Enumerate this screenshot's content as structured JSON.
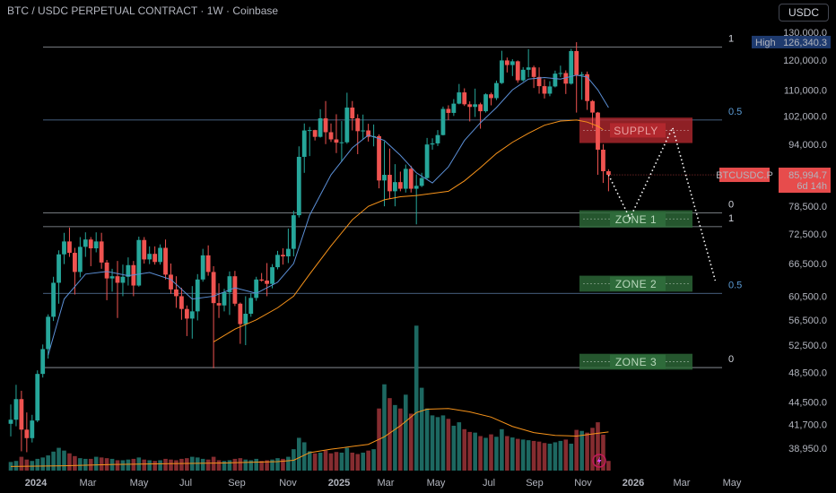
{
  "header": {
    "title": "BTC / USDC PERPETUAL CONTRACT · 1W · Coinbase",
    "currency_button": "USDC"
  },
  "chart_data": {
    "type": "candlestick",
    "symbol": "BTCUSDC.P",
    "timeframe": "1W",
    "y_scale": "log",
    "ylim": [
      36500,
      131000
    ],
    "y_ticks": [
      "130,000.0",
      "120,000.0",
      "110,000.0",
      "102,000.0",
      "94,000.0",
      "78,500.0",
      "72,500.0",
      "66,500.0",
      "60,500.0",
      "56,500.0",
      "52,500.0",
      "48,500.0",
      "44,500.0",
      "41,700.0",
      "38,950.0"
    ],
    "x_ticks": [
      "2024",
      "Mar",
      "May",
      "Jul",
      "Sep",
      "Nov",
      "2025",
      "Mar",
      "May",
      "Jul",
      "Sep",
      "Nov",
      "2026",
      "Mar",
      "May"
    ],
    "high_label": "High",
    "high_value": "126,340.3",
    "last_price": "85,994.7",
    "countdown": "6d 14h",
    "colors": {
      "up": "#26a69a",
      "down": "#ef5350",
      "ma_fast": "#5b8fd6",
      "ma_slow": "#f7931a",
      "fib_line": "#5d7ea8"
    },
    "candles": [
      [
        41800,
        44200,
        40300,
        42300
      ],
      [
        42300,
        46800,
        41500,
        44900
      ],
      [
        44900,
        46000,
        38600,
        41100
      ],
      [
        41100,
        43200,
        38500,
        40100
      ],
      [
        40100,
        42900,
        39600,
        42200
      ],
      [
        42200,
        48800,
        42000,
        48300
      ],
      [
        48300,
        52600,
        47800,
        51900
      ],
      [
        51900,
        57400,
        50500,
        57000
      ],
      [
        57000,
        64000,
        56300,
        62900
      ],
      [
        62900,
        69100,
        59200,
        68300
      ],
      [
        68300,
        72700,
        66400,
        70900
      ],
      [
        70900,
        73800,
        67800,
        68600
      ],
      [
        68600,
        69600,
        60800,
        64900
      ],
      [
        64900,
        71800,
        63900,
        69800
      ],
      [
        69800,
        72800,
        67800,
        71300
      ],
      [
        71300,
        71800,
        66000,
        69500
      ],
      [
        69500,
        72800,
        68700,
        70900
      ],
      [
        70900,
        72700,
        65500,
        66700
      ],
      [
        66700,
        67200,
        59800,
        63700
      ],
      [
        63700,
        65500,
        61300,
        64100
      ],
      [
        64100,
        67000,
        56800,
        62900
      ],
      [
        62900,
        66300,
        60500,
        64000
      ],
      [
        64000,
        67700,
        62400,
        66200
      ],
      [
        66200,
        67000,
        60500,
        62400
      ],
      [
        62400,
        71900,
        62200,
        71200
      ],
      [
        71200,
        71800,
        66500,
        67300
      ],
      [
        67300,
        69900,
        66400,
        68400
      ],
      [
        68400,
        69900,
        66300,
        66800
      ],
      [
        66800,
        70300,
        66300,
        69600
      ],
      [
        69600,
        71300,
        63500,
        64400
      ],
      [
        64400,
        66500,
        60900,
        61700
      ],
      [
        61700,
        64100,
        58500,
        60500
      ],
      [
        60500,
        62000,
        56500,
        58300
      ],
      [
        58300,
        58900,
        53900,
        56700
      ],
      [
        56700,
        62300,
        53500,
        57900
      ],
      [
        57900,
        64500,
        56400,
        63500
      ],
      [
        63500,
        69400,
        63100,
        68100
      ],
      [
        68100,
        70100,
        64200,
        64900
      ],
      [
        64900,
        66000,
        49100,
        59300
      ],
      [
        59300,
        62800,
        56800,
        58900
      ],
      [
        58900,
        61800,
        57900,
        61200
      ],
      [
        61200,
        65000,
        57300,
        64100
      ],
      [
        64100,
        65100,
        58800,
        59200
      ],
      [
        59200,
        59400,
        52700,
        55800
      ],
      [
        55800,
        60500,
        52500,
        57500
      ],
      [
        57500,
        61000,
        57000,
        60200
      ],
      [
        60200,
        64000,
        59700,
        63500
      ],
      [
        63500,
        64700,
        63100,
        63300
      ],
      [
        63300,
        66600,
        60500,
        62700
      ],
      [
        62700,
        66400,
        61900,
        65800
      ],
      [
        65800,
        69000,
        65400,
        68200
      ],
      [
        68200,
        69500,
        66300,
        67900
      ],
      [
        67900,
        73600,
        66600,
        69400
      ],
      [
        69400,
        77500,
        67900,
        76500
      ],
      [
        76500,
        93400,
        76000,
        90600
      ],
      [
        90600,
        99800,
        86500,
        97800
      ],
      [
        97800,
        98800,
        90800,
        97900
      ],
      [
        97900,
        98000,
        95000,
        96000
      ],
      [
        96000,
        104000,
        95800,
        101300
      ],
      [
        101300,
        106500,
        94000,
        97300
      ],
      [
        97300,
        99800,
        94600,
        95300
      ],
      [
        95300,
        102500,
        91600,
        94400
      ],
      [
        94400,
        100500,
        89300,
        94500
      ],
      [
        94500,
        109100,
        94100,
        104500
      ],
      [
        104500,
        106500,
        97800,
        101300
      ],
      [
        101300,
        102500,
        91300,
        97600
      ],
      [
        97600,
        102400,
        95300,
        97800
      ],
      [
        97800,
        99700,
        94700,
        96000
      ],
      [
        96000,
        99500,
        93400,
        96200
      ],
      [
        96200,
        96700,
        82700,
        84600
      ],
      [
        84600,
        94700,
        78500,
        86000
      ],
      [
        86000,
        92800,
        80200,
        82000
      ],
      [
        82000,
        88700,
        78500,
        84200
      ],
      [
        84200,
        86800,
        82000,
        82600
      ],
      [
        82600,
        88600,
        81700,
        87500
      ],
      [
        87500,
        88300,
        81700,
        82600
      ],
      [
        82600,
        86100,
        74500,
        83300
      ],
      [
        83300,
        86500,
        83000,
        85200
      ],
      [
        85200,
        95700,
        85000,
        93900
      ],
      [
        93900,
        95600,
        92500,
        94200
      ],
      [
        94200,
        97900,
        93500,
        96500
      ],
      [
        96500,
        104800,
        96400,
        104100
      ],
      [
        104100,
        105200,
        100800,
        102900
      ],
      [
        102900,
        107100,
        102000,
        105700
      ],
      [
        105700,
        111900,
        105500,
        109200
      ],
      [
        109200,
        110500,
        105000,
        105500
      ],
      [
        105500,
        106400,
        100400,
        104700
      ],
      [
        104700,
        110400,
        101700,
        105500
      ],
      [
        105500,
        106000,
        98300,
        103400
      ],
      [
        103400,
        108900,
        103000,
        108600
      ],
      [
        108600,
        109100,
        105200,
        107400
      ],
      [
        107400,
        113000,
        106800,
        112200
      ],
      [
        112200,
        123200,
        111900,
        119800
      ],
      [
        119800,
        120800,
        115700,
        118200
      ],
      [
        118200,
        120200,
        114500,
        119500
      ],
      [
        119500,
        119800,
        112300,
        113100
      ],
      [
        113100,
        117500,
        112700,
        116600
      ],
      [
        116600,
        123800,
        114100,
        117400
      ],
      [
        117400,
        118000,
        110600,
        114200
      ],
      [
        114200,
        117400,
        108800,
        111200
      ],
      [
        111200,
        113400,
        107300,
        108800
      ],
      [
        108800,
        112800,
        108000,
        111100
      ],
      [
        111100,
        116300,
        110800,
        115300
      ],
      [
        115300,
        118000,
        114200,
        115500
      ],
      [
        115500,
        116400,
        108700,
        112000
      ],
      [
        112000,
        123900,
        111700,
        123100
      ],
      [
        123100,
        126300,
        103000,
        114800
      ],
      [
        114800,
        115900,
        106900,
        115100
      ],
      [
        115100,
        116000,
        103800,
        106500
      ],
      [
        106500,
        106800,
        98500,
        103000
      ],
      [
        103000,
        103200,
        86000,
        92500
      ],
      [
        92500,
        94000,
        84000,
        86900
      ],
      [
        86900,
        87400,
        82000,
        86000
      ]
    ],
    "volume_scale": [
      0,
      1000
    ],
    "volumes": [
      25,
      28,
      40,
      32,
      28,
      34,
      38,
      44,
      55,
      66,
      58,
      50,
      42,
      36,
      34,
      34,
      40,
      38,
      36,
      34,
      30,
      30,
      32,
      34,
      38,
      32,
      30,
      28,
      30,
      34,
      32,
      30,
      34,
      36,
      40,
      38,
      34,
      32,
      40,
      30,
      28,
      30,
      34,
      36,
      32,
      30,
      34,
      28,
      30,
      32,
      36,
      34,
      40,
      62,
      95,
      82,
      56,
      50,
      52,
      58,
      50,
      54,
      52,
      66,
      52,
      48,
      52,
      58,
      62,
      180,
      250,
      210,
      190,
      180,
      220,
      165,
      420,
      240,
      180,
      160,
      155,
      160,
      150,
      130,
      140,
      120,
      112,
      110,
      100,
      95,
      105,
      98,
      120,
      100,
      96,
      92,
      90,
      88,
      86,
      84,
      80,
      78,
      82,
      86,
      90,
      78,
      118,
      115,
      110,
      124,
      140,
      104,
      28
    ],
    "ma_fast": [
      [
        7,
        51000
      ],
      [
        10,
        60000
      ],
      [
        14,
        64500
      ],
      [
        18,
        65000
      ],
      [
        22,
        64200
      ],
      [
        26,
        64800
      ],
      [
        30,
        63500
      ],
      [
        34,
        60000
      ],
      [
        38,
        60500
      ],
      [
        42,
        62000
      ],
      [
        46,
        61000
      ],
      [
        50,
        63000
      ],
      [
        53,
        66500
      ],
      [
        56,
        76500
      ],
      [
        60,
        86000
      ],
      [
        64,
        93000
      ],
      [
        67,
        96500
      ],
      [
        70,
        95000
      ],
      [
        73,
        91000
      ],
      [
        76,
        86500
      ],
      [
        79,
        84000
      ],
      [
        82,
        88000
      ],
      [
        85,
        95000
      ],
      [
        88,
        100000
      ],
      [
        91,
        104500
      ],
      [
        94,
        110000
      ],
      [
        97,
        113500
      ],
      [
        100,
        114000
      ],
      [
        103,
        113500
      ],
      [
        106,
        114800
      ],
      [
        108,
        114200
      ],
      [
        110,
        110000
      ],
      [
        112,
        104500
      ]
    ],
    "ma_slow": [
      [
        38,
        53000
      ],
      [
        42,
        55000
      ],
      [
        46,
        56500
      ],
      [
        50,
        58500
      ],
      [
        53,
        60500
      ],
      [
        56,
        64500
      ],
      [
        60,
        70000
      ],
      [
        64,
        75500
      ],
      [
        67,
        78500
      ],
      [
        70,
        80000
      ],
      [
        73,
        80700
      ],
      [
        76,
        81000
      ],
      [
        79,
        81500
      ],
      [
        82,
        82000
      ],
      [
        85,
        84500
      ],
      [
        88,
        87800
      ],
      [
        91,
        91500
      ],
      [
        94,
        94500
      ],
      [
        97,
        97000
      ],
      [
        100,
        99300
      ],
      [
        103,
        100500
      ],
      [
        106,
        100800
      ],
      [
        108,
        100200
      ],
      [
        110,
        99000
      ],
      [
        111,
        98000
      ]
    ],
    "vol_ma": [
      [
        0,
        12
      ],
      [
        10,
        14
      ],
      [
        20,
        18
      ],
      [
        30,
        20
      ],
      [
        40,
        22
      ],
      [
        50,
        26
      ],
      [
        53,
        30
      ],
      [
        56,
        52
      ],
      [
        60,
        62
      ],
      [
        64,
        70
      ],
      [
        67,
        76
      ],
      [
        70,
        98
      ],
      [
        73,
        130
      ],
      [
        76,
        168
      ],
      [
        78,
        178
      ],
      [
        82,
        180
      ],
      [
        86,
        170
      ],
      [
        90,
        155
      ],
      [
        94,
        128
      ],
      [
        98,
        110
      ],
      [
        102,
        102
      ],
      [
        106,
        100
      ],
      [
        110,
        108
      ],
      [
        112,
        112
      ]
    ],
    "fib_sets": [
      {
        "price_top": 124500,
        "price_mid": 100800,
        "price_bot": 77000,
        "labels": [
          "1",
          "0.5",
          "0"
        ]
      },
      {
        "price_top": 74000,
        "price_mid": 61000,
        "price_bot": 49200,
        "labels": [
          "1",
          "0.5",
          "0"
        ]
      }
    ],
    "zones": [
      {
        "label": "SUPPLY",
        "top": 101500,
        "bottom": 94300,
        "color": "#b2282e"
      },
      {
        "label": "ZONE 1",
        "top": 77600,
        "bottom": 73800,
        "color": "#2e6b3a"
      },
      {
        "label": "ZONE 2",
        "top": 64200,
        "bottom": 61300,
        "color": "#2e6b3a"
      },
      {
        "label": "ZONE 3",
        "top": 51200,
        "bottom": 48900,
        "color": "#2e6b3a"
      }
    ],
    "projection": [
      [
        112,
        86000
      ],
      [
        116,
        75800
      ],
      [
        124,
        98600
      ],
      [
        132,
        63300
      ]
    ]
  }
}
